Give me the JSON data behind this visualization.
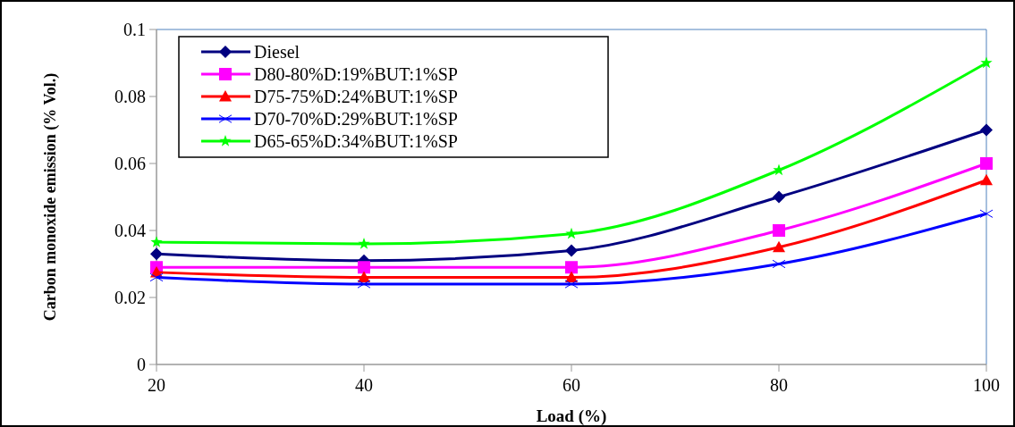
{
  "chart_data": {
    "type": "line",
    "xlabel": "Load (%)",
    "ylabel": "Carbon monoxide emission (% Vol.)",
    "x": [
      20,
      40,
      60,
      80,
      100
    ],
    "xlim": [
      20,
      100
    ],
    "xticks": [
      20,
      40,
      60,
      80,
      100
    ],
    "ylim": [
      0,
      0.1
    ],
    "yticks": [
      0,
      0.02,
      0.04,
      0.06,
      0.08,
      0.1
    ],
    "grid": false,
    "legend": "top left",
    "series": [
      {
        "name": "Diesel",
        "color": "#000080",
        "marker": "diamond",
        "values": [
          0.033,
          0.031,
          0.034,
          0.05,
          0.07
        ]
      },
      {
        "name": "D80-80%D:19%BUT:1%SP",
        "color": "#ff00ff",
        "marker": "square",
        "values": [
          0.029,
          0.029,
          0.029,
          0.04,
          0.06
        ]
      },
      {
        "name": "D75-75%D:24%BUT:1%SP",
        "color": "#ff0000",
        "marker": "triangle",
        "values": [
          0.0275,
          0.026,
          0.026,
          0.035,
          0.055
        ]
      },
      {
        "name": "D70-70%D:29%BUT:1%SP",
        "color": "#0000ff",
        "marker": "cross",
        "values": [
          0.026,
          0.024,
          0.024,
          0.03,
          0.045
        ]
      },
      {
        "name": "D65-65%D:34%BUT:1%SP",
        "color": "#00ff00",
        "marker": "star",
        "values": [
          0.0365,
          0.036,
          0.039,
          0.058,
          0.09
        ]
      }
    ]
  }
}
